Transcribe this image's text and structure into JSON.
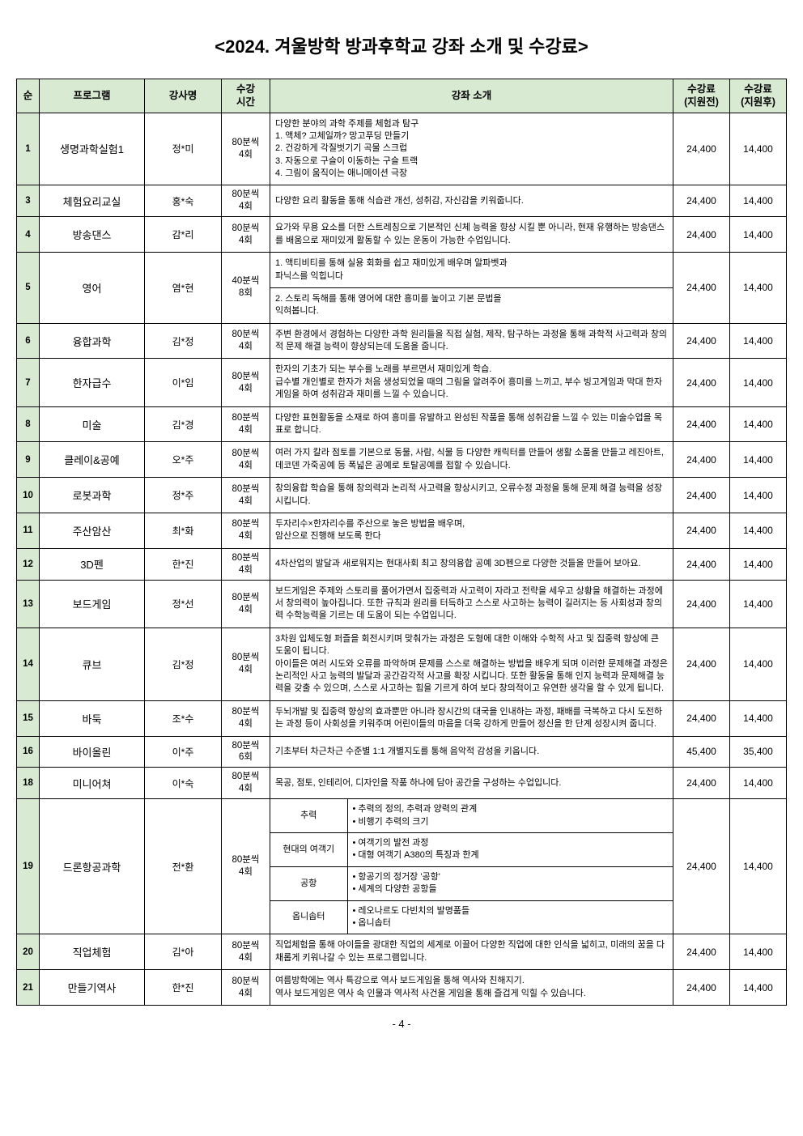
{
  "title": "<2024. 겨울방학 방과후학교 강좌 소개 및 수강료>",
  "columns": {
    "num": "순",
    "program": "프로그램",
    "instructor": "강사명",
    "time": "수강\n시간",
    "desc": "강좌 소개",
    "fee_before": "수강료\n(지원전)",
    "fee_after": "수강료\n(지원후)"
  },
  "page_number": "- 4 -",
  "rows": [
    {
      "num": "1",
      "program": "생명과학실험1",
      "instructor": "정*미",
      "time": "80분씩\n4회",
      "desc": " 다양한 분야의 과학 주제를 체험과 탐구\n1. 액체? 고체일까? 망고푸딩 만들기\n2. 건강하게 각질벗기기 곡물 스크럽\n3. 자동으로 구슬이 이동하는 구슬 트랙\n4. 그림이 움직이는 애니메이션 극장",
      "fee_before": "24,400",
      "fee_after": "14,400"
    },
    {
      "num": "3",
      "program": "체험요리교실",
      "instructor": "홍*숙",
      "time": "80분씩\n4회",
      "desc": "다양한 요리 활동을 통해 식습관 개선, 성취감, 자신감을 키워줍니다.",
      "fee_before": "24,400",
      "fee_after": "14,400"
    },
    {
      "num": "4",
      "program": "방송댄스",
      "instructor": "감*리",
      "time": "80분씩\n4회",
      "desc": "요가와 무용 요소를 더한 스트레칭으로 기본적인 신체 능력을 향상 시킬 뿐 아니라, 현재 유행하는 방송댄스를 배움으로 재미있게 활동할 수 있는 운동이 가능한 수업입니다.",
      "fee_before": "24,400",
      "fee_after": "14,400"
    },
    {
      "num": "5",
      "program": "영어",
      "instructor": "염*현",
      "time_top": "40분씩\n8회",
      "time_bot": "",
      "desc_top": "1. 액티비티를 통해 실용 회화를 쉽고 재미있게 배우며 알파벳과\n    파닉스를 익힙니다",
      "desc_bot": "2. 스토리 독해를 통해 영어에 대한 흥미를 높이고 기본 문법을\n    익혀봅니다.",
      "fee_before": "24,400",
      "fee_after": "14,400",
      "split": true
    },
    {
      "num": "6",
      "program": "융합과학",
      "instructor": "김*정",
      "time": "80분씩\n4회",
      "desc": "주변 환경에서 경험하는 다양한 과학 원리들을 직접 실험, 제작, 탐구하는 과정을 통해 과학적 사고력과 창의적 문제 해결 능력이 향상되는데 도움을 줍니다.",
      "fee_before": "24,400",
      "fee_after": "14,400"
    },
    {
      "num": "7",
      "program": "한자급수",
      "instructor": "이*임",
      "time": "80분씩\n4회",
      "desc": " 한자의 기초가 되는 부수를 노래를 부르면서 재미있게 학습.\n 급수별 개인별로 한자가 처음 생성되었을 때의 그림을 알려주어 흥미를 느끼고, 부수 빙고게임과 막대 한자 게임을 하여 성취감과 재미를 느낄 수 있습니다.",
      "fee_before": "24,400",
      "fee_after": "14,400"
    },
    {
      "num": "8",
      "program": "미술",
      "instructor": "김*경",
      "time": "80분씩\n4회",
      "desc": "다양한 표현활동을 소재로 하여 흥미를 유발하고 완성된 작품을 통해 성취감을 느낄 수 있는 미술수업을 목표로 합니다.",
      "fee_before": "24,400",
      "fee_after": "14,400"
    },
    {
      "num": "9",
      "program": "클레이&공예",
      "instructor": "오*주",
      "time": "80분씩\n4회",
      "desc": "여러 가지 칼라 점토를 기본으로 동물, 사람, 식물 등 다양한 캐릭터를 만들어 생활 소품을 만들고 레진아트, 데코덴 가죽공예 등 폭넓은 공예로 토탈공예를 접할 수 있습니다.",
      "fee_before": "24,400",
      "fee_after": "14,400"
    },
    {
      "num": "10",
      "program": "로봇과학",
      "instructor": "정*주",
      "time": "80분씩\n4회",
      "desc": "창의융합 학습을 통해 창의력과 논리적 사고력을 향상시키고, 오류수정 과정을 통해 문제 해결 능력을 성장시킵니다.",
      "fee_before": "24,400",
      "fee_after": "14,400"
    },
    {
      "num": "11",
      "program": "주산암산",
      "instructor": "최*화",
      "time": "80분씩\n4회",
      "desc": "두자리수×한자리수를 주산으로 놓은 방법을 배우며,\n암산으로 진행해 보도록 한다",
      "fee_before": "24,400",
      "fee_after": "14,400"
    },
    {
      "num": "12",
      "program": "3D펜",
      "instructor": "한*진",
      "time": "80분씩\n4회",
      "desc": "4차산업의 발달과 새로워지는 현대사회 최고 창의융합 공예 3D펜으로 다양한 것들을 만들어 보아요.",
      "fee_before": "24,400",
      "fee_after": "14,400"
    },
    {
      "num": "13",
      "program": "보드게임",
      "instructor": "정*선",
      "time": "80분씩\n4회",
      "desc": "보드게임은 주제와 스토리를 풀어가면서 집중력과 사고력이 자라고 전략을 세우고 상황을 해결하는 과정에서 창의력이 높아집니다. 또한 규칙과 원리를 터득하고 스스로 사고하는 능력이 길러지는 등 사회성과 창의력 수학능력을 기르는 데 도움이 되는 수업입니다.",
      "fee_before": "24,400",
      "fee_after": "14,400"
    },
    {
      "num": "14",
      "program": "큐브",
      "instructor": "김*정",
      "time": "80분씩\n4회",
      "desc": "3차원 입체도형 퍼즐을 회전시키며 맞춰가는 과정은 도형에 대한 이해와 수학적 사고 및 집중력 향상에 큰 도움이 됩니다.\n아이들은 여러 시도와 오류를 파악하며 문제를 스스로 해결하는 방법을 배우게 되며 이러한 문제해결 과정은 논리적인 사고 능력의 발달과 공간감각적 사고를 확장 시킵니다. 또한 활동을 통해 인지 능력과 문제해결 능력을 갖출 수 있으며, 스스로 사고하는 힘을 기르게 하여 보다 창의적이고 유연한 생각을 할 수 있게 됩니다.",
      "fee_before": "24,400",
      "fee_after": "14,400"
    },
    {
      "num": "15",
      "program": "바둑",
      "instructor": "조*수",
      "time": "80분씩\n4회",
      "desc": "두뇌개발 및 집중력 향상의 효과뿐만 아니라 장시간의 대국을 인내하는 과정, 패배를 극복하고 다시 도전하는 과정 등이 사회성을 키워주며 어린이들의 마음을 더욱 강하게 만들어 정신을 한 단계 성장시켜 줍니다.",
      "fee_before": "24,400",
      "fee_after": "14,400"
    },
    {
      "num": "16",
      "program": "바이올린",
      "instructor": "이*주",
      "time": "80분씩\n6회",
      "desc": "기초부터 차근차근 수준별 1:1 개별지도를 통해 음악적 감성을 키웁니다.",
      "fee_before": "45,400",
      "fee_after": "35,400"
    },
    {
      "num": "18",
      "program": "미니어쳐",
      "instructor": "이*숙",
      "time": "80분씩\n4회",
      "desc": "목공, 점토, 인테리어, 디자인을 작품 하나에 담아 공간을 구성하는 수업입니다.",
      "fee_before": "24,400",
      "fee_after": "14,400"
    },
    {
      "num": "19",
      "program": "드론항공과학",
      "instructor": "전*환",
      "time": "80분씩\n4회",
      "subrows": [
        {
          "head": "추력",
          "body": "• 추력의 정의, 추력과 양력의 관계\n• 비행기 추력의 크기"
        },
        {
          "head": "현대의 여객기",
          "body": "• 여객기의 발전 과정\n• 대형 여객기 A380의 특징과 한계"
        },
        {
          "head": "공항",
          "body": "• 항공기의 정거장 '공항'\n• 세계의 다양한 공항들"
        },
        {
          "head": "옵니솝터",
          "body": "• 레오나르도 다빈치의 발명품들\n• 옵니솝터"
        }
      ],
      "fee_before": "24,400",
      "fee_after": "14,400"
    },
    {
      "num": "20",
      "program": "직업체험",
      "instructor": "김*아",
      "time": "80분씩\n4회",
      "desc": "직업체험을 통해 아이들을 광대한 직업의 세계로 이끌어 다양한 직업에 대한 인식을 넓히고, 미래의 꿈을 다채롭게 키워나갈 수 있는 프로그램입니다.",
      "fee_before": "24,400",
      "fee_after": "14,400"
    },
    {
      "num": "21",
      "program": "만들기역사",
      "instructor": "한*진",
      "time": "80분씩\n4회",
      "desc": "여름방학에는 역사 특강으로 역사 보드게임을 통해 역사와 친해지기.\n역사 보드게임은 역사 속 인물과 역사적 사건을 게임을 통해 즐겁게 익힐 수 있습니다.",
      "fee_before": "24,400",
      "fee_after": "14,400"
    }
  ]
}
